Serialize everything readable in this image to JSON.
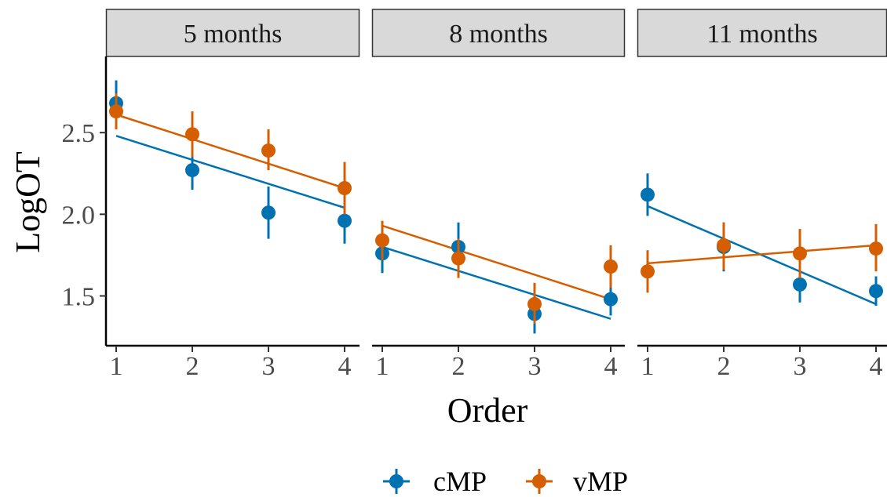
{
  "chart_data": {
    "type": "scatter",
    "xlabel": "Order",
    "ylabel": "LogOT",
    "x_ticks": [
      1,
      2,
      3,
      4
    ],
    "y_ticks": [
      1.5,
      2.0,
      2.5
    ],
    "y_tick_labels": [
      "1.5",
      "2.0",
      "2.5"
    ],
    "xlim": [
      0.87,
      4.13
    ],
    "ylim": [
      1.2,
      2.88
    ],
    "grid": false,
    "legend_position": "bottom",
    "colors": {
      "cMP": "#0072B2",
      "vMP": "#D55E00"
    },
    "panels": [
      {
        "label": "5 months",
        "series": [
          {
            "name": "cMP",
            "points": [
              {
                "x": 1,
                "y": 2.68,
                "lo": 2.54,
                "hi": 2.82
              },
              {
                "x": 2,
                "y": 2.27,
                "lo": 2.15,
                "hi": 2.39
              },
              {
                "x": 3,
                "y": 2.01,
                "lo": 1.85,
                "hi": 2.17
              },
              {
                "x": 4,
                "y": 1.96,
                "lo": 1.82,
                "hi": 2.1
              }
            ],
            "fit": [
              [
                1,
                2.48
              ],
              [
                4,
                2.04
              ]
            ]
          },
          {
            "name": "vMP",
            "points": [
              {
                "x": 1,
                "y": 2.63,
                "lo": 2.52,
                "hi": 2.74
              },
              {
                "x": 2,
                "y": 2.49,
                "lo": 2.35,
                "hi": 2.63
              },
              {
                "x": 3,
                "y": 2.39,
                "lo": 2.27,
                "hi": 2.52
              },
              {
                "x": 4,
                "y": 2.16,
                "lo": 2.0,
                "hi": 2.32
              }
            ],
            "fit": [
              [
                1,
                2.61
              ],
              [
                4,
                2.16
              ]
            ]
          }
        ]
      },
      {
        "label": "8 months",
        "series": [
          {
            "name": "cMP",
            "points": [
              {
                "x": 1,
                "y": 1.76,
                "lo": 1.64,
                "hi": 1.88
              },
              {
                "x": 2,
                "y": 1.8,
                "lo": 1.65,
                "hi": 1.95
              },
              {
                "x": 3,
                "y": 1.39,
                "lo": 1.27,
                "hi": 1.51
              },
              {
                "x": 4,
                "y": 1.48,
                "lo": 1.38,
                "hi": 1.58
              }
            ],
            "fit": [
              [
                1,
                1.8
              ],
              [
                4,
                1.36
              ]
            ]
          },
          {
            "name": "vMP",
            "points": [
              {
                "x": 1,
                "y": 1.84,
                "lo": 1.72,
                "hi": 1.96
              },
              {
                "x": 2,
                "y": 1.73,
                "lo": 1.61,
                "hi": 1.85
              },
              {
                "x": 3,
                "y": 1.45,
                "lo": 1.33,
                "hi": 1.58
              },
              {
                "x": 4,
                "y": 1.68,
                "lo": 1.55,
                "hi": 1.81
              }
            ],
            "fit": [
              [
                1,
                1.93
              ],
              [
                4,
                1.48
              ]
            ]
          }
        ]
      },
      {
        "label": "11 months",
        "series": [
          {
            "name": "cMP",
            "points": [
              {
                "x": 1,
                "y": 2.12,
                "lo": 1.99,
                "hi": 2.25
              },
              {
                "x": 2,
                "y": 1.8,
                "lo": 1.65,
                "hi": 1.95
              },
              {
                "x": 3,
                "y": 1.57,
                "lo": 1.46,
                "hi": 1.69
              },
              {
                "x": 4,
                "y": 1.53,
                "lo": 1.44,
                "hi": 1.62
              }
            ],
            "fit": [
              [
                1,
                2.05
              ],
              [
                4,
                1.45
              ]
            ]
          },
          {
            "name": "vMP",
            "points": [
              {
                "x": 1,
                "y": 1.65,
                "lo": 1.52,
                "hi": 1.78
              },
              {
                "x": 2,
                "y": 1.81,
                "lo": 1.66,
                "hi": 1.95
              },
              {
                "x": 3,
                "y": 1.76,
                "lo": 1.61,
                "hi": 1.91
              },
              {
                "x": 4,
                "y": 1.79,
                "lo": 1.65,
                "hi": 1.94
              }
            ],
            "fit": [
              [
                1,
                1.7
              ],
              [
                4,
                1.81
              ]
            ]
          }
        ]
      }
    ]
  }
}
